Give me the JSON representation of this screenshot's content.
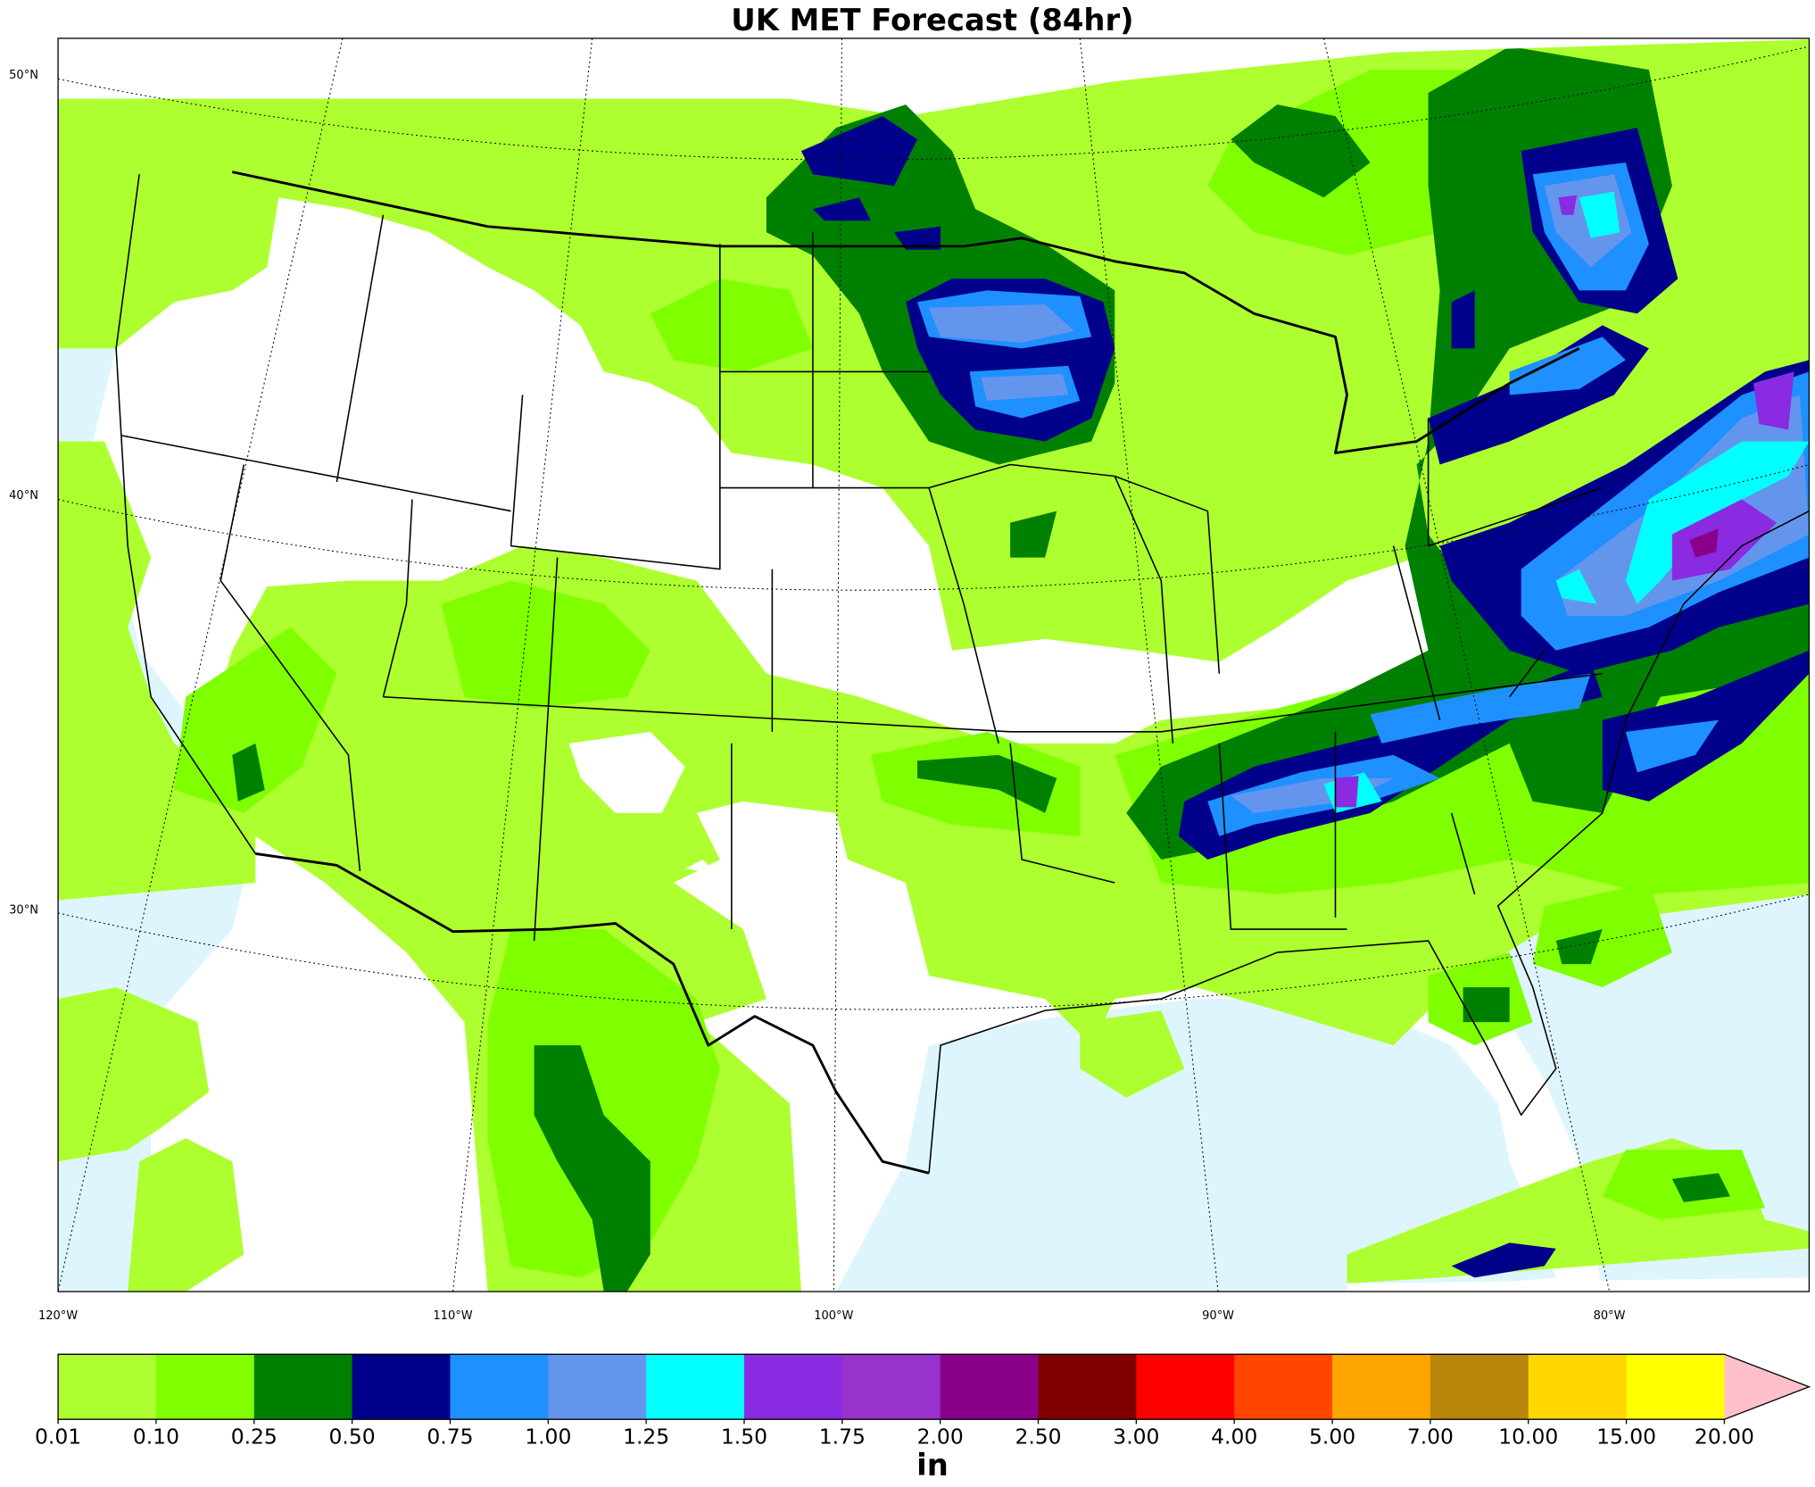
{
  "header": {
    "title": "UK MET Forecast (84hr)"
  },
  "map": {
    "latitude_labels": [
      "50°N",
      "40°N",
      "30°N"
    ],
    "longitude_labels": [
      "120°W",
      "110°W",
      "100°W",
      "90°W",
      "80°W"
    ]
  },
  "colorbar": {
    "levels": [
      "0.01",
      "0.10",
      "0.25",
      "0.50",
      "0.75",
      "1.00",
      "1.25",
      "1.50",
      "1.75",
      "2.00",
      "2.50",
      "3.00",
      "4.00",
      "5.00",
      "7.00",
      "10.00",
      "15.00",
      "20.00"
    ],
    "colors": [
      "#adff2f",
      "#7fff00",
      "#008000",
      "#00008b",
      "#1e90ff",
      "#6495ed",
      "#00ffff",
      "#8a2be2",
      "#9932cc",
      "#8b008b",
      "#800000",
      "#ff0000",
      "#ff4500",
      "#ffa500",
      "#b8860b",
      "#ffd700",
      "#ffff00"
    ],
    "extend_color": "#ffc0cb",
    "unit": "in"
  }
}
